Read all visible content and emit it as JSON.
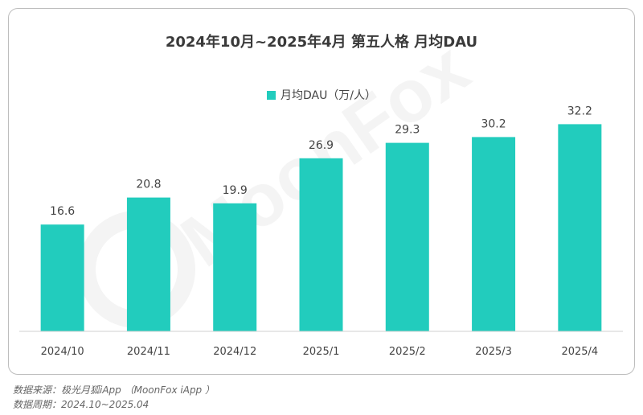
{
  "chart_data": {
    "type": "bar",
    "title": "2024年10月~2025年4月 第五人格 月均DAU",
    "categories": [
      "2024/10",
      "2024/11",
      "2024/12",
      "2025/1",
      "2025/2",
      "2025/3",
      "2025/4"
    ],
    "series": [
      {
        "name": "月均DAU（万/人）",
        "values": [
          16.6,
          20.8,
          19.9,
          26.9,
          29.3,
          30.2,
          32.2
        ]
      }
    ],
    "ylim": [
      0,
      40
    ],
    "grid": false,
    "legend_position": "top-center",
    "bar_color": "#22CCBD"
  },
  "watermark": {
    "text": "MoonFox"
  },
  "footer": {
    "source": "数据来源：极光月狐iApp （MoonFox iApp ）",
    "period": "数据周期：2024.10~2025.04"
  }
}
